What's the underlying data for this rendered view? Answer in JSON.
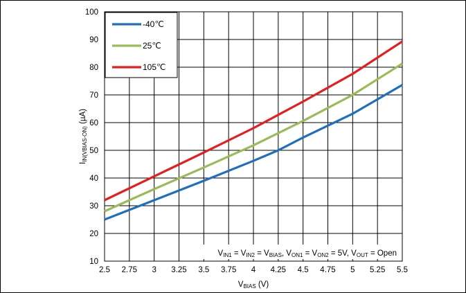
{
  "chart_data": {
    "type": "line",
    "xlabel": {
      "main": "V",
      "sub": "BIAS",
      "suffix": " (V)"
    },
    "ylabel": {
      "main": "I",
      "sub": "IN(VBIAS-ON)",
      "suffix": " (µA)"
    },
    "xlim": [
      2.5,
      5.5
    ],
    "ylim": [
      10,
      100
    ],
    "xticks": [
      "2.5",
      "2.75",
      "3",
      "3.25",
      "3.5",
      "3.75",
      "4",
      "4.25",
      "4.5",
      "4.75",
      "5",
      "5.25",
      "5.5"
    ],
    "yticks": [
      "10",
      "20",
      "30",
      "40",
      "50",
      "60",
      "70",
      "80",
      "90",
      "100"
    ],
    "grid": true,
    "legend_position": "top-left",
    "series": [
      {
        "name": "-40℃",
        "color": "#1f6fbf",
        "x": [
          2.5,
          3.0,
          3.5,
          4.0,
          4.25,
          4.5,
          5.0,
          5.5
        ],
        "y": [
          25.0,
          32.0,
          39.0,
          46.2,
          50.0,
          54.6,
          63.2,
          73.6
        ]
      },
      {
        "name": "25℃",
        "color": "#9bbb59",
        "x": [
          2.5,
          3.0,
          3.5,
          4.0,
          4.5,
          5.0,
          5.5
        ],
        "y": [
          28.0,
          36.0,
          43.8,
          51.8,
          60.6,
          70.0,
          81.3
        ]
      },
      {
        "name": "105℃",
        "color": "#e81c1c",
        "x": [
          2.5,
          3.0,
          3.5,
          4.0,
          4.5,
          5.0,
          5.5
        ],
        "y": [
          32.0,
          40.6,
          49.2,
          58.0,
          67.6,
          77.6,
          89.3
        ]
      }
    ],
    "annotation": [
      {
        "t": "V"
      },
      {
        "t": "IN1",
        "sub": true
      },
      {
        "t": " = V"
      },
      {
        "t": "IN2",
        "sub": true
      },
      {
        "t": " = V"
      },
      {
        "t": "BIAS",
        "sub": true
      },
      {
        "t": ", V"
      },
      {
        "t": "ON1",
        "sub": true
      },
      {
        "t": " = V"
      },
      {
        "t": "ON2",
        "sub": true
      },
      {
        "t": " = 5V, V"
      },
      {
        "t": "OUT",
        "sub": true
      },
      {
        "t": " = Open"
      }
    ]
  }
}
